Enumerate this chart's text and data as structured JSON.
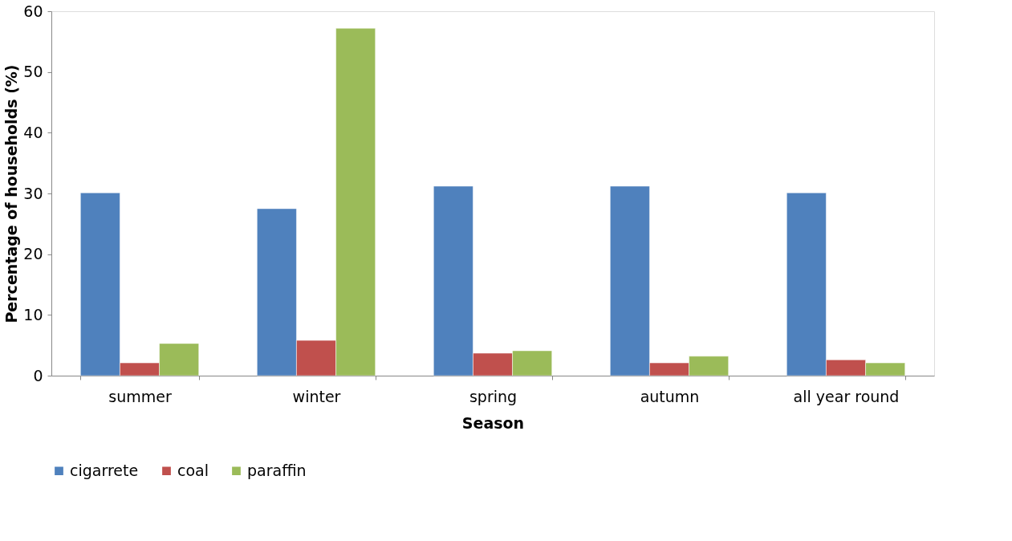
{
  "chart_data": {
    "type": "bar",
    "xlabel": "Season",
    "ylabel": "Percentage of households (%)",
    "categories": [
      "summer",
      "winter",
      "spring",
      "autumn",
      "all year round"
    ],
    "series": [
      {
        "name": "cigarrete",
        "color": "#4f81bd",
        "values": [
          30.1,
          27.5,
          31.2,
          31.2,
          30.1
        ]
      },
      {
        "name": "coal",
        "color": "#c0504d",
        "values": [
          2.1,
          5.8,
          3.7,
          2.1,
          2.6
        ]
      },
      {
        "name": "paraffin",
        "color": "#9bbb59",
        "values": [
          5.3,
          57.2,
          4.1,
          3.2,
          2.1
        ]
      }
    ],
    "ylim": [
      0,
      60
    ],
    "yticks": [
      0,
      10,
      20,
      30,
      40,
      50,
      60
    ],
    "grid": false,
    "legend": "bottom"
  }
}
